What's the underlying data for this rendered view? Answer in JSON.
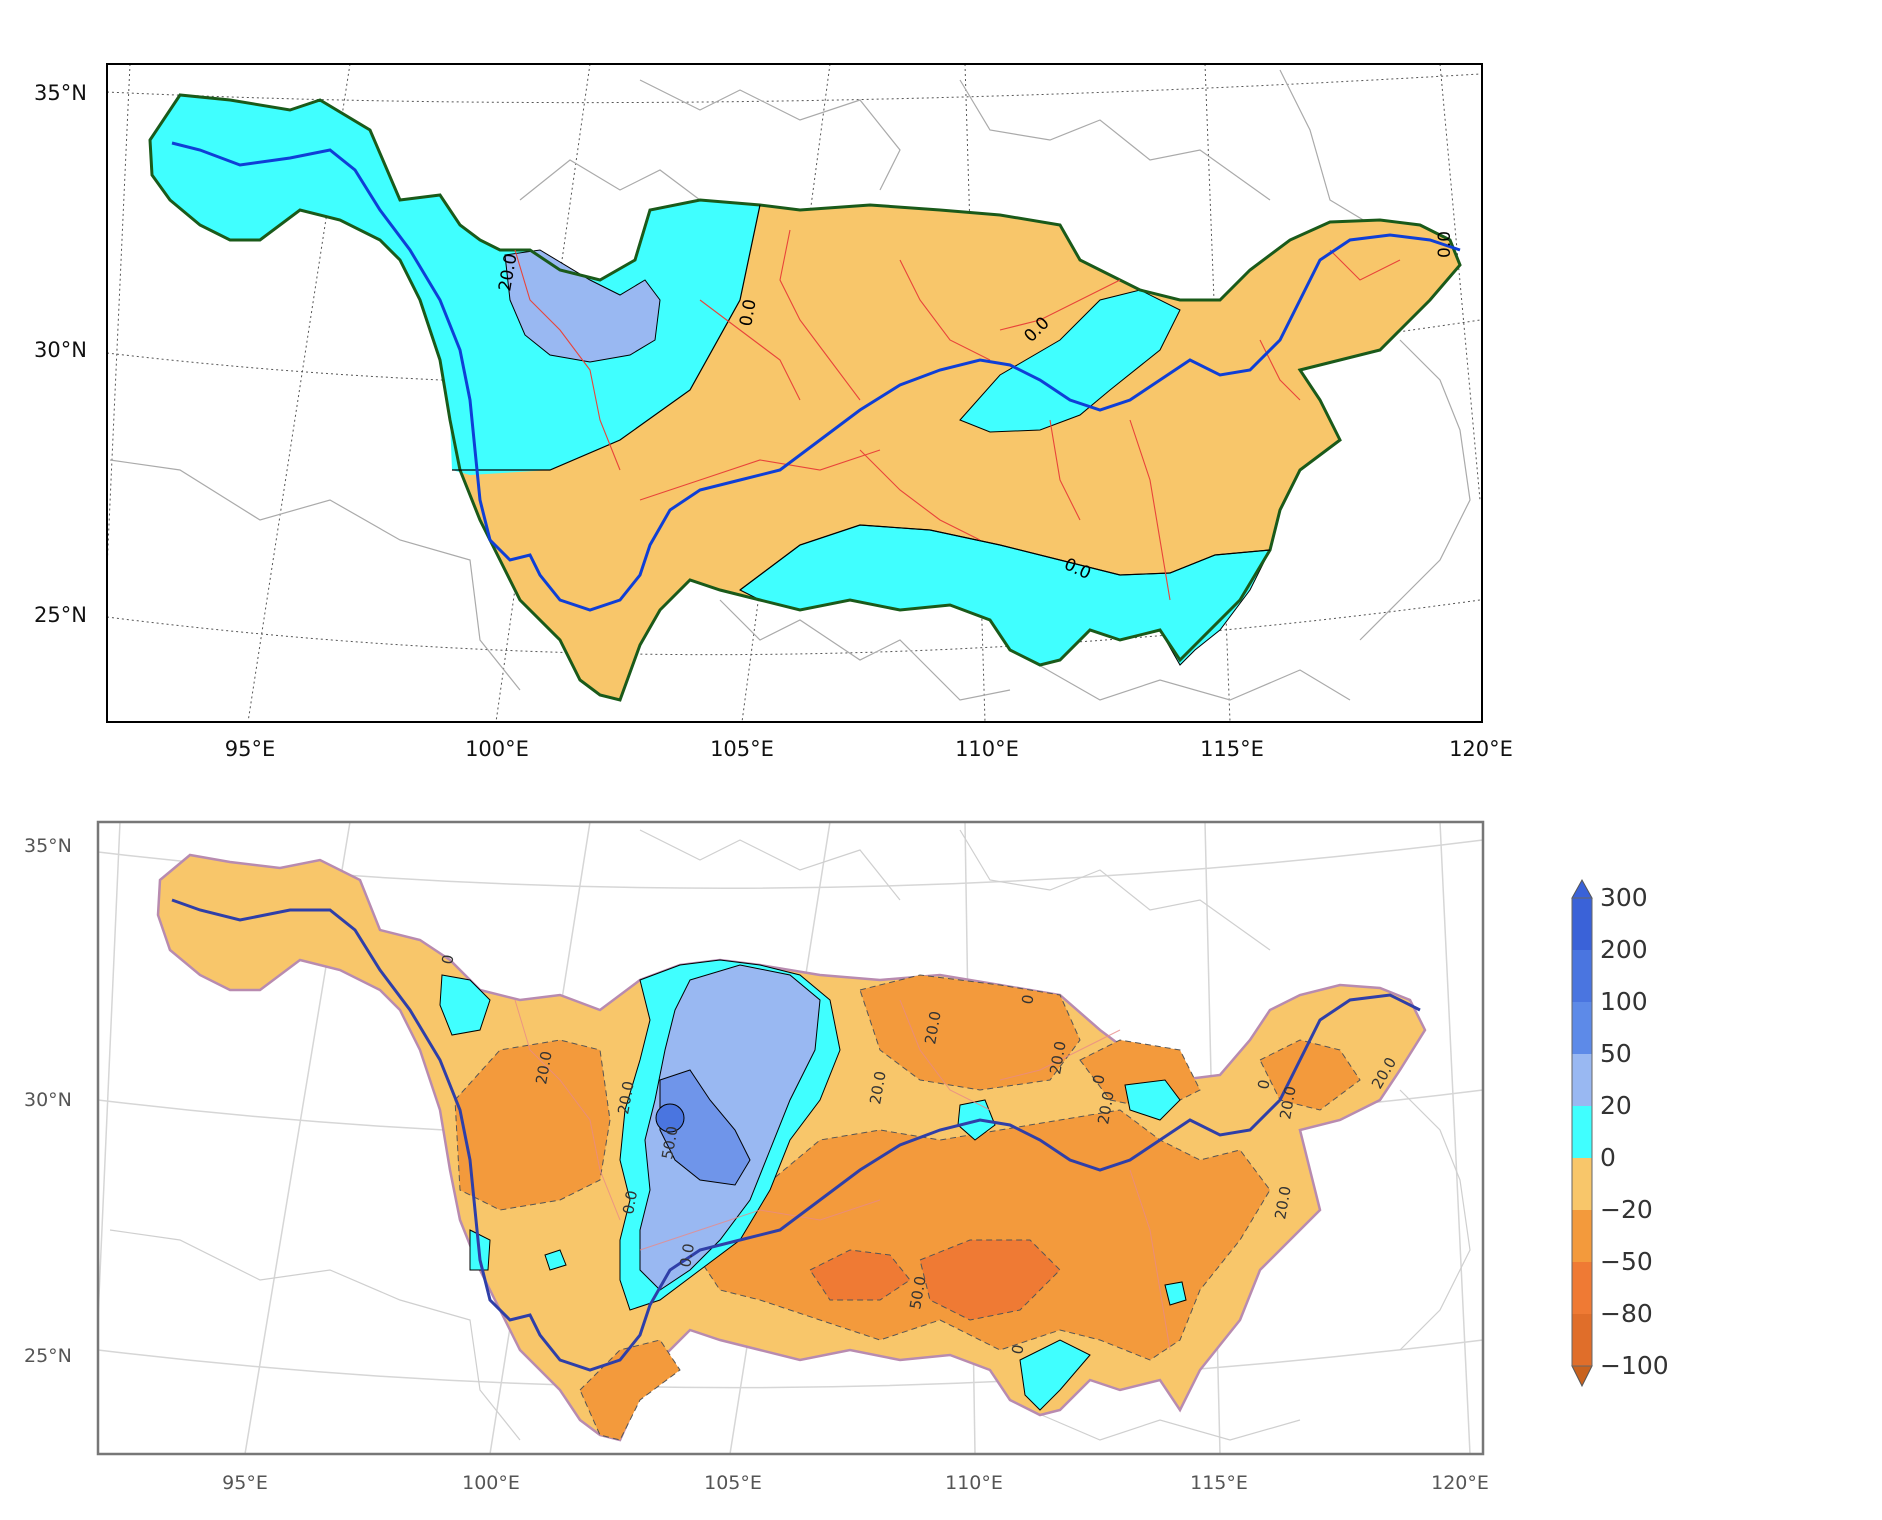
{
  "top_map": {
    "lat_ticks": [
      "35°N",
      "30°N",
      "25°N"
    ],
    "lon_ticks": [
      "95°E",
      "100°E",
      "105°E",
      "110°E",
      "115°E",
      "120°E"
    ],
    "contour_labels": [
      "20.0",
      "0.0",
      "0.0",
      "0.0",
      "0.0"
    ],
    "colors": {
      "positive_0_20": "#40ffff",
      "positive_20_50": "#99b8f2",
      "negative_0_20": "#f8c66a",
      "basin_outline": "#1a5a1a",
      "main_river": "#0f3fd6",
      "tributaries": "#e8443a"
    }
  },
  "bottom_map": {
    "lat_ticks": [
      "35°N",
      "30°N",
      "25°N"
    ],
    "lon_ticks": [
      "95°E",
      "100°E",
      "105°E",
      "110°E",
      "115°E",
      "120°E"
    ],
    "contour_labels": [
      "0",
      "20.0",
      "20.0",
      "0.0",
      "50.0",
      "0.0",
      "20.0",
      "20.0",
      "0",
      "0",
      "20.0",
      "50.0",
      "0",
      "20.0",
      "0",
      "20.0",
      "20.0",
      "20.0"
    ],
    "colors": {
      "c_0_20": "#f8c66a",
      "c_20_50": "#f39a3c",
      "c_50_80": "#ef7a34",
      "c_80_100": "#d96a22",
      "p_0_20": "#40ffff",
      "p_20_50": "#99b8f2",
      "p_50_100": "#6f95ea",
      "p_100_200": "#4a75e0",
      "p_200_300": "#3158d0"
    }
  },
  "colorbar": {
    "labels": [
      "300",
      "200",
      "100",
      "50",
      "20",
      "0",
      "−20",
      "−50",
      "−80",
      "−100"
    ],
    "colors": [
      "#3a62d8",
      "#4a75e0",
      "#5d8ae8",
      "#99b8f2",
      "#40ffff",
      "#f8c66a",
      "#f39a3c",
      "#ef7a34",
      "#e06e2a",
      "#c8621e"
    ]
  }
}
